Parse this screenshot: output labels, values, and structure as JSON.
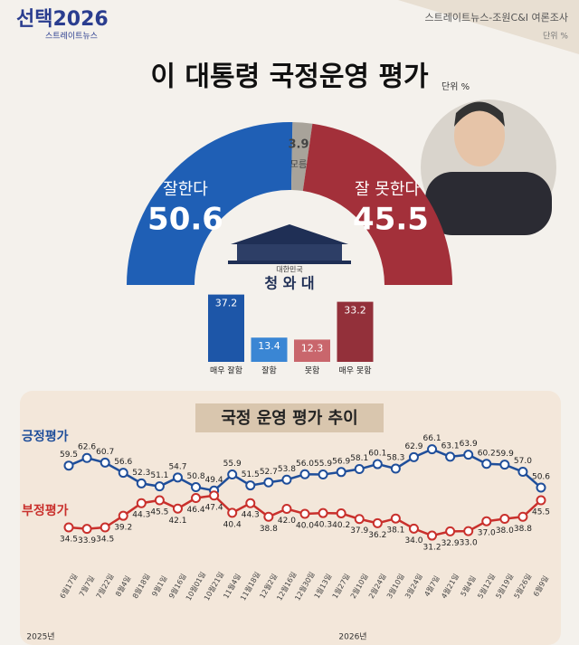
{
  "header": {
    "brand": "선택2026",
    "brand_sub": "스트레이트뉴스",
    "source": "스트레이트뉴스-조원C&I 여론조사",
    "unit": "단위 %"
  },
  "emblem_top": "대한민국",
  "emblem": "청 와 대",
  "chart_data": [
    {
      "type": "pie",
      "title": "이 대통령 국정운영 평가",
      "unit": "단위 %",
      "categories": [
        "잘한다",
        "모름",
        "잘 못한다"
      ],
      "values": [
        50.6,
        3.9,
        45.5
      ],
      "colors": [
        "#1f5fb5",
        "#a8a39a",
        "#a3303a"
      ]
    },
    {
      "type": "bar",
      "categories": [
        "매우 잘함",
        "잘함",
        "못함",
        "매우 못함"
      ],
      "values": [
        37.2,
        13.4,
        12.3,
        33.2
      ],
      "colors": [
        "#1d56a8",
        "#3a86d4",
        "#c9666c",
        "#93303a"
      ],
      "ylim": [
        0,
        40
      ]
    },
    {
      "type": "line",
      "title": "국정 운영 평가 추이",
      "years": [
        "2025년",
        "2026년"
      ],
      "categories": [
        "6월17일",
        "7월7일",
        "7월22일",
        "8월4일",
        "8월18일",
        "9월1일",
        "9월16일",
        "10월01일",
        "10월21일",
        "11월4일",
        "11월18일",
        "12월2일",
        "12월16일",
        "12월30일",
        "1월13일",
        "1월27일",
        "2월10일",
        "2월24일",
        "3월10일",
        "3월24일",
        "4월7일",
        "4월21일",
        "5월4일",
        "5월12일",
        "5월19일",
        "5월26일",
        "6월9일"
      ],
      "series": [
        {
          "name": "긍정평가",
          "color": "#1f4e9a",
          "values": [
            59.5,
            62.6,
            60.7,
            56.6,
            52.3,
            51.1,
            54.7,
            50.8,
            49.4,
            55.9,
            51.5,
            52.7,
            53.8,
            56.0,
            55.9,
            56.9,
            58.1,
            60.1,
            58.3,
            62.9,
            66.1,
            63.1,
            63.9,
            60.2,
            59.9,
            57.0,
            50.6
          ],
          "value_labels": [
            "59.5",
            "62.6",
            "60.7",
            "56.6",
            "52.3",
            "51.1",
            "54.7",
            "50.8",
            "49.4",
            "55.9",
            "51.5",
            "52.7",
            "53.8",
            "56.0",
            "55.9",
            "56.9",
            "58.1",
            "60.1",
            "58.3",
            "62.9",
            "66.1",
            "63.1",
            "63.9",
            "60.2",
            "59.9",
            "57.0",
            "50.6"
          ]
        },
        {
          "name": "부정평가",
          "color": "#c9302c",
          "values": [
            34.5,
            33.9,
            34.5,
            39.2,
            44.3,
            45.5,
            42.1,
            46.4,
            47.4,
            40.4,
            44.3,
            38.8,
            42.0,
            40.0,
            40.3,
            40.2,
            37.9,
            36.2,
            38.1,
            34.0,
            31.2,
            32.9,
            33.0,
            37.0,
            38.0,
            38.8,
            45.5
          ],
          "value_labels": [
            "34.5",
            "33.9",
            "34.5",
            "39.2",
            "44.3",
            "45.5",
            "42.1",
            "46.4",
            "47.4",
            "40.4",
            "44.3",
            "38.8",
            "42.0",
            "40.0",
            "40.3",
            "40.2",
            "37.9",
            "36.2",
            "38.1",
            "34.0",
            "31.2",
            "32.9",
            "33.0",
            "37.0",
            "38.0",
            "38.8",
            "45.5"
          ]
        }
      ],
      "ylim": [
        25,
        70
      ]
    }
  ]
}
